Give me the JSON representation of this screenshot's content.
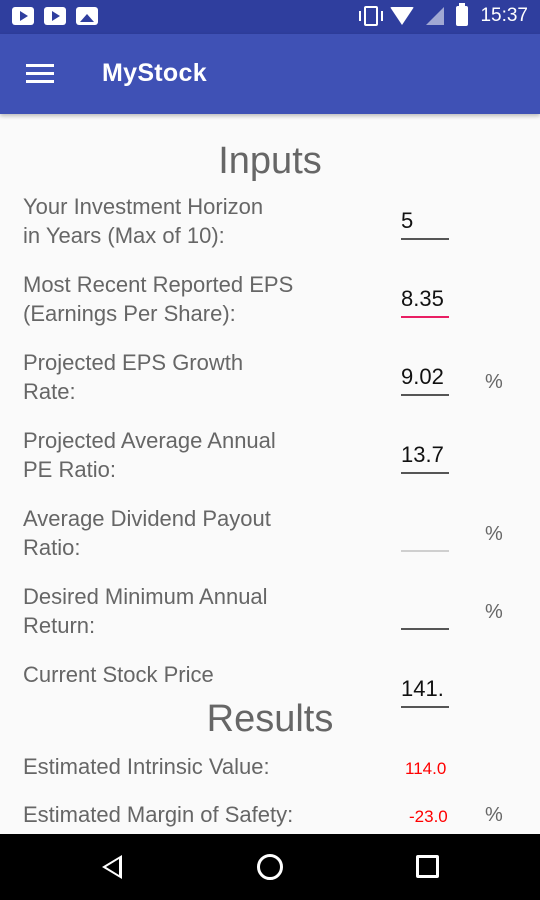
{
  "status_bar": {
    "time": "15:37",
    "left_icons": [
      "youtube-icon",
      "youtube-icon",
      "image-icon"
    ],
    "right_icons": [
      "vibrate-icon",
      "wifi-icon",
      "cellular-icon",
      "battery-icon"
    ]
  },
  "app_bar": {
    "title": "MyStock",
    "menu_icon": "hamburger-menu-icon",
    "background": "#3f51b5"
  },
  "inputs": {
    "title": "Inputs",
    "fields": [
      {
        "label_line1": "Your Investment Horizon",
        "label_line2": "in Years (Max of 10):",
        "value": "5",
        "suffix": ""
      },
      {
        "label_line1": "Most Recent Reported EPS",
        "label_line2": "(Earnings Per Share):",
        "value": "8.35",
        "suffix": ""
      },
      {
        "label_line1": "Projected EPS Growth",
        "label_line2": "Rate:",
        "value": "9.02",
        "suffix": "%"
      },
      {
        "label_line1": "Projected Average Annual",
        "label_line2": "PE Ratio:",
        "value": "13.7",
        "suffix": ""
      },
      {
        "label_line1": "Average Dividend Payout",
        "label_line2": "Ratio:",
        "value": "",
        "suffix": "%"
      },
      {
        "label_line1": "Desired Minimum Annual",
        "label_line2": "Return:",
        "value": "",
        "suffix": "%"
      },
      {
        "label_line1": "Current Stock Price",
        "label_line2": "",
        "value": "141.",
        "suffix": ""
      }
    ]
  },
  "results": {
    "title": "Results",
    "rows": [
      {
        "label": "Estimated Intrinsic Value:",
        "value": "114.0",
        "suffix": ""
      },
      {
        "label": "Estimated Margin of Safety:",
        "value": "-23.0",
        "suffix": "%"
      }
    ],
    "value_color": "#ff0000"
  },
  "nav_bar": {
    "icons": [
      "back-icon",
      "home-icon",
      "recent-apps-icon"
    ]
  }
}
